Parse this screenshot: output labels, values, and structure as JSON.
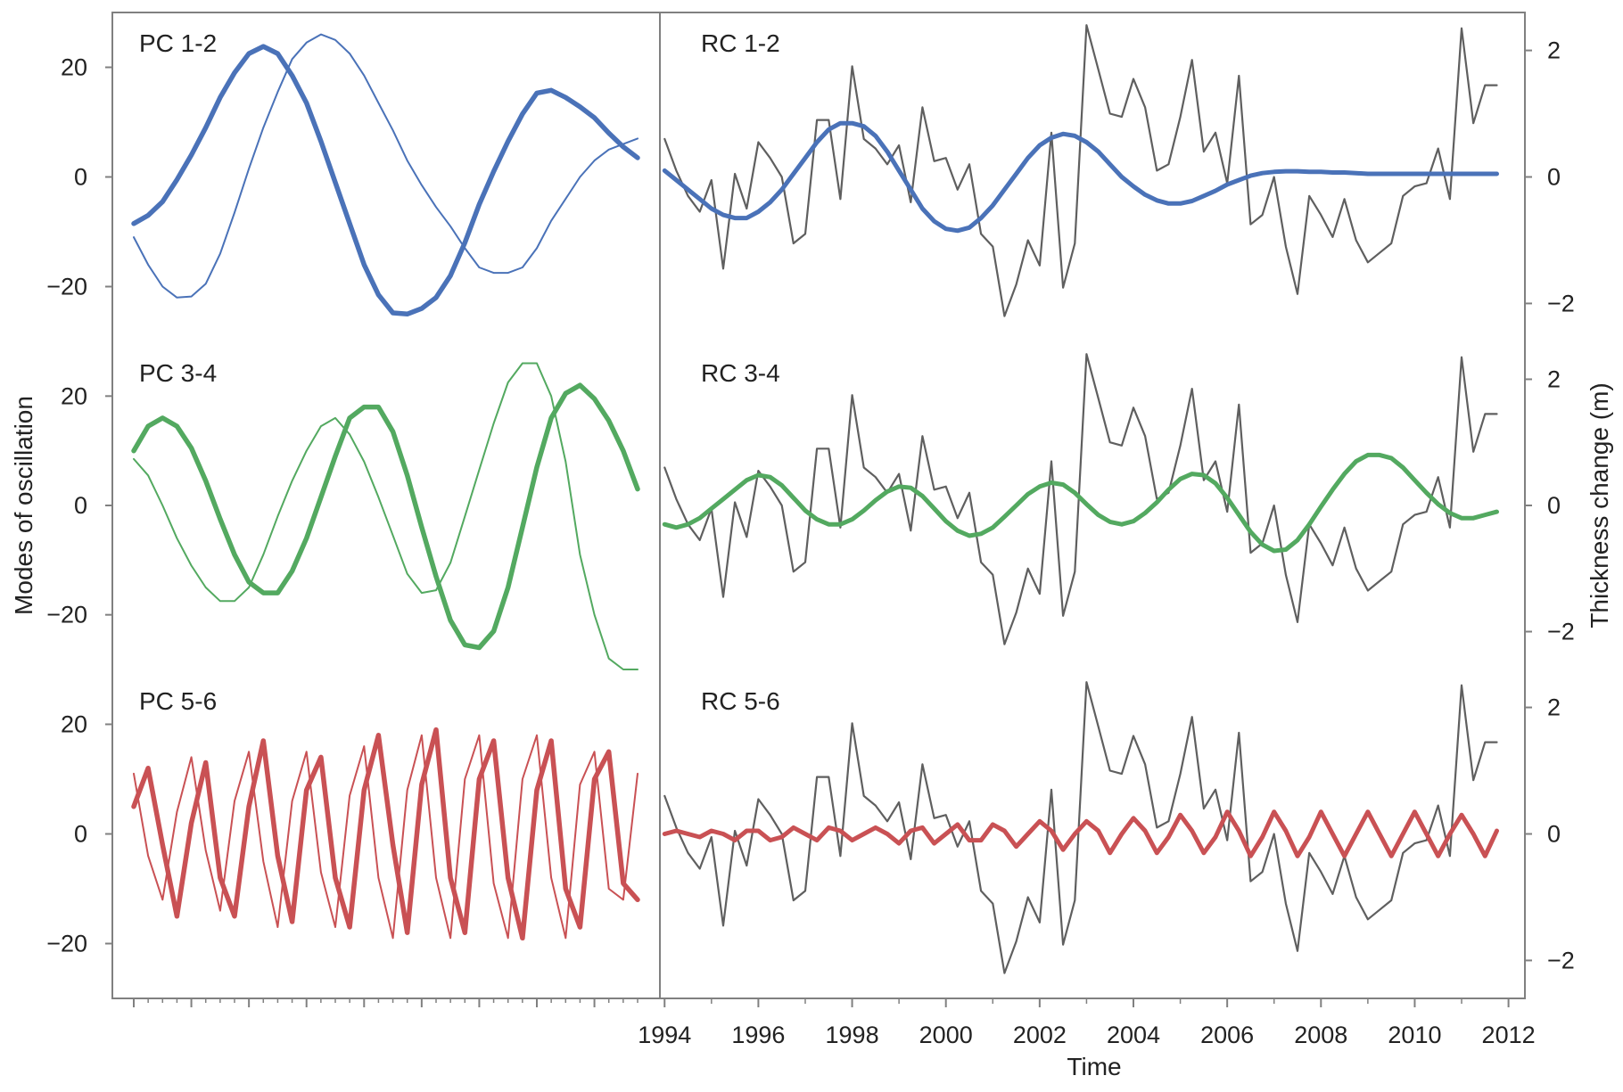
{
  "figure": {
    "left_axis_label": "Modes of oscillation",
    "right_axis_label": "Thickness change (m)",
    "x_axis_label": "Time"
  },
  "chart_data": [
    {
      "type": "line",
      "panel": "PC 1-2",
      "color": "#4a72b8",
      "x_index": [
        0,
        1,
        2,
        3,
        4,
        5,
        6,
        7,
        8,
        9,
        10,
        11,
        12,
        13,
        14,
        15,
        16,
        17,
        18,
        19,
        20,
        21,
        22,
        23,
        24,
        25,
        26,
        27,
        28,
        29,
        30,
        31,
        32,
        33,
        34,
        35
      ],
      "series": [
        {
          "values": [
            -8.5,
            -7,
            -4.5,
            -0.5,
            4,
            9,
            14.5,
            19,
            22.5,
            23.8,
            22.5,
            18.5,
            13.5,
            6.5,
            -1,
            -8.5,
            -16,
            -21.5,
            -24.8,
            -25,
            -24,
            -22,
            -18,
            -12,
            -5,
            1,
            6.5,
            11.5,
            15.3,
            15.8,
            14.5,
            12.8,
            10.8,
            8,
            5.5,
            3.5
          ]
        },
        {
          "values": [
            -11,
            -16,
            -20,
            -22,
            -21.8,
            -19.5,
            -14,
            -6.5,
            1.5,
            9,
            15.5,
            21.5,
            24.5,
            26,
            25,
            22.5,
            18.5,
            13.5,
            8.5,
            3,
            -1.5,
            -5.5,
            -9,
            -13,
            -16.5,
            -17.5,
            -17.5,
            -16.5,
            -13,
            -8,
            -4,
            0,
            3,
            5,
            6,
            7
          ]
        }
      ],
      "ylim": [
        -30,
        30
      ],
      "yticks": [
        -20,
        0,
        20
      ]
    },
    {
      "type": "line",
      "panel": "PC 3-4",
      "color": "#53a960",
      "x_index": [
        0,
        1,
        2,
        3,
        4,
        5,
        6,
        7,
        8,
        9,
        10,
        11,
        12,
        13,
        14,
        15,
        16,
        17,
        18,
        19,
        20,
        21,
        22,
        23,
        24,
        25,
        26,
        27,
        28,
        29,
        30,
        31,
        32,
        33,
        34,
        35
      ],
      "series": [
        {
          "values": [
            10,
            14.5,
            16,
            14.5,
            10.5,
            4.5,
            -2.5,
            -9,
            -14,
            -16,
            -16,
            -12,
            -6,
            1.5,
            9,
            16,
            18,
            18,
            13.5,
            5.5,
            -4,
            -13,
            -21,
            -25.5,
            -26,
            -23,
            -15,
            -4,
            7,
            16,
            20.5,
            22,
            19.5,
            15.5,
            10,
            3
          ]
        },
        {
          "values": [
            8.5,
            5.5,
            0,
            -6,
            -11,
            -15,
            -17.5,
            -17.5,
            -15,
            -9,
            -2,
            4.5,
            10,
            14.5,
            16,
            13,
            8,
            1.5,
            -5.5,
            -12.5,
            -16,
            -15.5,
            -10.5,
            -2,
            6.5,
            15,
            22.5,
            26,
            26,
            20,
            8,
            -9,
            -20,
            -28,
            -30,
            -30
          ]
        }
      ],
      "ylim": [
        -30,
        30
      ],
      "yticks": [
        -20,
        0,
        20
      ]
    },
    {
      "type": "line",
      "panel": "PC 5-6",
      "color": "#c95154",
      "x_index": [
        0,
        1,
        2,
        3,
        4,
        5,
        6,
        7,
        8,
        9,
        10,
        11,
        12,
        13,
        14,
        15,
        16,
        17,
        18,
        19,
        20,
        21,
        22,
        23,
        24,
        25,
        26,
        27,
        28,
        29,
        30,
        31,
        32,
        33,
        34,
        35
      ],
      "series": [
        {
          "values": [
            5,
            12,
            -2,
            -15,
            2,
            13,
            -8,
            -15,
            5,
            17,
            -4,
            -16,
            8,
            14,
            -8,
            -17,
            8,
            18,
            -2,
            -18,
            9,
            19,
            -8,
            -18,
            10,
            17,
            -8,
            -19,
            8,
            17,
            -10,
            -17,
            10,
            15,
            -9,
            -12
          ]
        },
        {
          "values": [
            11,
            -4,
            -12,
            4,
            14,
            -3,
            -14,
            6,
            15,
            -5,
            -17,
            6,
            15,
            -7,
            -17,
            7,
            16,
            -8,
            -19,
            8,
            18,
            -8,
            -19,
            10,
            18,
            -9,
            -19,
            10,
            18,
            -8,
            -19,
            9,
            15,
            -10,
            -12,
            11
          ]
        }
      ],
      "ylim": [
        -30,
        30
      ],
      "yticks": [
        -20,
        0,
        20
      ]
    },
    {
      "type": "line",
      "panel": "RC 1-2",
      "color": "#4a72b8",
      "x": [
        1994,
        1994.25,
        1994.5,
        1994.75,
        1995,
        1995.25,
        1995.5,
        1995.75,
        1996,
        1996.25,
        1996.5,
        1996.75,
        1997,
        1997.25,
        1997.5,
        1997.75,
        1998,
        1998.25,
        1998.5,
        1998.75,
        1999,
        1999.25,
        1999.5,
        1999.75,
        2000,
        2000.25,
        2000.5,
        2000.75,
        2001,
        2001.25,
        2001.5,
        2001.75,
        2002,
        2002.25,
        2002.5,
        2002.75,
        2003,
        2003.25,
        2003.5,
        2003.75,
        2004,
        2004.25,
        2004.5,
        2004.75,
        2005,
        2005.25,
        2005.5,
        2005.75,
        2006,
        2006.25,
        2006.5,
        2006.75,
        2007,
        2007.25,
        2007.5,
        2007.75,
        2008,
        2008.25,
        2008.5,
        2008.75,
        2009,
        2009.25,
        2009.5,
        2009.75,
        2010,
        2010.25,
        2010.5,
        2010.75,
        2011,
        2011.25,
        2011.5,
        2011.75
      ],
      "series": [
        {
          "name": "",
          "color": "#5f5f5f",
          "values": [
            0.6,
            0.1,
            -0.3,
            -0.55,
            -0.05,
            -1.45,
            0.05,
            -0.5,
            0.55,
            0.3,
            0,
            -1.05,
            -0.9,
            0.9,
            0.9,
            -0.35,
            1.75,
            0.6,
            0.45,
            0.2,
            0.5,
            -0.4,
            1.1,
            0.25,
            0.3,
            -0.2,
            0.2,
            -0.9,
            -1.1,
            -2.2,
            -1.7,
            -1.0,
            -1.4,
            0.7,
            -1.75,
            -1.05,
            2.4,
            1.7,
            1.0,
            0.95,
            1.55,
            1.1,
            0.1,
            0.2,
            0.95,
            1.85,
            0.4,
            0.7,
            -0.1,
            1.6,
            -0.75,
            -0.6,
            0,
            -1.1,
            -1.85,
            -0.3,
            -0.6,
            -0.95,
            -0.35,
            -1.0,
            -1.35,
            -1.2,
            -1.05,
            -0.3,
            -0.15,
            -0.1,
            0.45,
            -0.35,
            2.35,
            0.85,
            1.45,
            1.45
          ]
        },
        {
          "name": "",
          "color": "#4a72b8",
          "values": [
            0.1,
            -0.05,
            -0.2,
            -0.35,
            -0.5,
            -0.6,
            -0.65,
            -0.65,
            -0.55,
            -0.4,
            -0.2,
            0.05,
            0.3,
            0.55,
            0.75,
            0.85,
            0.85,
            0.8,
            0.65,
            0.4,
            0.1,
            -0.2,
            -0.5,
            -0.7,
            -0.82,
            -0.85,
            -0.8,
            -0.65,
            -0.45,
            -0.2,
            0.05,
            0.3,
            0.5,
            0.62,
            0.68,
            0.65,
            0.55,
            0.4,
            0.2,
            0,
            -0.15,
            -0.28,
            -0.37,
            -0.42,
            -0.42,
            -0.38,
            -0.3,
            -0.22,
            -0.12,
            -0.05,
            0.02,
            0.06,
            0.08,
            0.09,
            0.09,
            0.08,
            0.08,
            0.07,
            0.07,
            0.06,
            0.05,
            0.05,
            0.05,
            0.05,
            0.05,
            0.05,
            0.05,
            0.05,
            0.05,
            0.05,
            0.05,
            0.05
          ]
        }
      ],
      "ylim": [
        -2.6,
        2.6
      ],
      "yticks": [
        -2,
        0,
        2
      ]
    },
    {
      "type": "line",
      "panel": "RC 3-4",
      "color": "#53a960",
      "x": [
        1994,
        1994.25,
        1994.5,
        1994.75,
        1995,
        1995.25,
        1995.5,
        1995.75,
        1996,
        1996.25,
        1996.5,
        1996.75,
        1997,
        1997.25,
        1997.5,
        1997.75,
        1998,
        1998.25,
        1998.5,
        1998.75,
        1999,
        1999.25,
        1999.5,
        1999.75,
        2000,
        2000.25,
        2000.5,
        2000.75,
        2001,
        2001.25,
        2001.5,
        2001.75,
        2002,
        2002.25,
        2002.5,
        2002.75,
        2003,
        2003.25,
        2003.5,
        2003.75,
        2004,
        2004.25,
        2004.5,
        2004.75,
        2005,
        2005.25,
        2005.5,
        2005.75,
        2006,
        2006.25,
        2006.5,
        2006.75,
        2007,
        2007.25,
        2007.5,
        2007.75,
        2008,
        2008.25,
        2008.5,
        2008.75,
        2009,
        2009.25,
        2009.5,
        2009.75,
        2010,
        2010.25,
        2010.5,
        2010.75,
        2011,
        2011.25,
        2011.5,
        2011.75
      ],
      "series": [
        {
          "name": "",
          "color": "#5f5f5f",
          "values": [
            0.6,
            0.1,
            -0.3,
            -0.55,
            -0.05,
            -1.45,
            0.05,
            -0.5,
            0.55,
            0.3,
            0,
            -1.05,
            -0.9,
            0.9,
            0.9,
            -0.35,
            1.75,
            0.6,
            0.45,
            0.2,
            0.5,
            -0.4,
            1.1,
            0.25,
            0.3,
            -0.2,
            0.2,
            -0.9,
            -1.1,
            -2.2,
            -1.7,
            -1.0,
            -1.4,
            0.7,
            -1.75,
            -1.05,
            2.4,
            1.7,
            1.0,
            0.95,
            1.55,
            1.1,
            0.1,
            0.2,
            0.95,
            1.85,
            0.4,
            0.7,
            -0.1,
            1.6,
            -0.75,
            -0.6,
            0,
            -1.1,
            -1.85,
            -0.3,
            -0.6,
            -0.95,
            -0.35,
            -1.0,
            -1.35,
            -1.2,
            -1.05,
            -0.3,
            -0.15,
            -0.1,
            0.45,
            -0.35,
            2.35,
            0.85,
            1.45,
            1.45
          ]
        },
        {
          "name": "",
          "color": "#53a960",
          "values": [
            -0.3,
            -0.35,
            -0.3,
            -0.2,
            -0.05,
            0.1,
            0.25,
            0.4,
            0.48,
            0.45,
            0.32,
            0.12,
            -0.08,
            -0.22,
            -0.3,
            -0.3,
            -0.22,
            -0.08,
            0.08,
            0.22,
            0.3,
            0.28,
            0.15,
            -0.05,
            -0.25,
            -0.4,
            -0.48,
            -0.45,
            -0.35,
            -0.18,
            0,
            0.18,
            0.3,
            0.36,
            0.33,
            0.2,
            0.02,
            -0.15,
            -0.26,
            -0.3,
            -0.25,
            -0.12,
            0.05,
            0.25,
            0.42,
            0.5,
            0.48,
            0.35,
            0.12,
            -0.15,
            -0.42,
            -0.62,
            -0.72,
            -0.7,
            -0.55,
            -0.3,
            -0.02,
            0.25,
            0.5,
            0.7,
            0.8,
            0.8,
            0.75,
            0.6,
            0.4,
            0.2,
            0.02,
            -0.12,
            -0.2,
            -0.2,
            -0.15,
            -0.1
          ]
        }
      ],
      "ylim": [
        -2.6,
        2.6
      ],
      "yticks": [
        -2,
        0,
        2
      ]
    },
    {
      "type": "line",
      "panel": "RC 5-6",
      "color": "#c95154",
      "x": [
        1994,
        1994.25,
        1994.5,
        1994.75,
        1995,
        1995.25,
        1995.5,
        1995.75,
        1996,
        1996.25,
        1996.5,
        1996.75,
        1997,
        1997.25,
        1997.5,
        1997.75,
        1998,
        1998.25,
        1998.5,
        1998.75,
        1999,
        1999.25,
        1999.5,
        1999.75,
        2000,
        2000.25,
        2000.5,
        2000.75,
        2001,
        2001.25,
        2001.5,
        2001.75,
        2002,
        2002.25,
        2002.5,
        2002.75,
        2003,
        2003.25,
        2003.5,
        2003.75,
        2004,
        2004.25,
        2004.5,
        2004.75,
        2005,
        2005.25,
        2005.5,
        2005.75,
        2006,
        2006.25,
        2006.5,
        2006.75,
        2007,
        2007.25,
        2007.5,
        2007.75,
        2008,
        2008.25,
        2008.5,
        2008.75,
        2009,
        2009.25,
        2009.5,
        2009.75,
        2010,
        2010.25,
        2010.5,
        2010.75,
        2011,
        2011.25,
        2011.5,
        2011.75
      ],
      "series": [
        {
          "name": "",
          "color": "#5f5f5f",
          "values": [
            0.6,
            0.1,
            -0.3,
            -0.55,
            -0.05,
            -1.45,
            0.05,
            -0.5,
            0.55,
            0.3,
            0,
            -1.05,
            -0.9,
            0.9,
            0.9,
            -0.35,
            1.75,
            0.6,
            0.45,
            0.2,
            0.5,
            -0.4,
            1.1,
            0.25,
            0.3,
            -0.2,
            0.2,
            -0.9,
            -1.1,
            -2.2,
            -1.7,
            -1.0,
            -1.4,
            0.7,
            -1.75,
            -1.05,
            2.4,
            1.7,
            1.0,
            0.95,
            1.55,
            1.1,
            0.1,
            0.2,
            0.95,
            1.85,
            0.4,
            0.7,
            -0.1,
            1.6,
            -0.75,
            -0.6,
            0,
            -1.1,
            -1.85,
            -0.3,
            -0.6,
            -0.95,
            -0.35,
            -1.0,
            -1.35,
            -1.2,
            -1.05,
            -0.3,
            -0.15,
            -0.1,
            0.45,
            -0.35,
            2.35,
            0.85,
            1.45,
            1.45
          ]
        },
        {
          "name": "",
          "color": "#c95154",
          "values": [
            0,
            0.05,
            0,
            -0.05,
            0.05,
            0,
            -0.1,
            0.05,
            0.05,
            -0.1,
            -0.05,
            0.1,
            0,
            -0.1,
            0.1,
            0.05,
            -0.1,
            0,
            0.1,
            0,
            -0.15,
            0.05,
            0.1,
            -0.15,
            0,
            0.15,
            -0.1,
            -0.1,
            0.15,
            0.05,
            -0.2,
            0,
            0.2,
            0.05,
            -0.25,
            0,
            0.2,
            0.05,
            -0.3,
            0,
            0.25,
            0.05,
            -0.3,
            -0.05,
            0.3,
            0.05,
            -0.3,
            -0.05,
            0.35,
            0.05,
            -0.35,
            -0.05,
            0.35,
            0.05,
            -0.35,
            -0.05,
            0.35,
            0.0,
            -0.35,
            0,
            0.35,
            0,
            -0.35,
            0,
            0.35,
            0,
            -0.35,
            0,
            0.3,
            0,
            -0.35,
            0.05
          ]
        }
      ],
      "ylim": [
        -2.6,
        2.6
      ],
      "yticks": [
        -2,
        0,
        2
      ]
    }
  ],
  "x_axis": {
    "tick_labels": [
      "1994",
      "1996",
      "1998",
      "2000",
      "2002",
      "2004",
      "2006",
      "2008",
      "2010",
      "2012"
    ],
    "xlim": [
      1993.9,
      2012.35
    ]
  },
  "colors": {
    "frame": "#808080",
    "raw_series": "#5f5f5f",
    "blue": "#4a72b8",
    "green": "#53a960",
    "red": "#c95154"
  }
}
